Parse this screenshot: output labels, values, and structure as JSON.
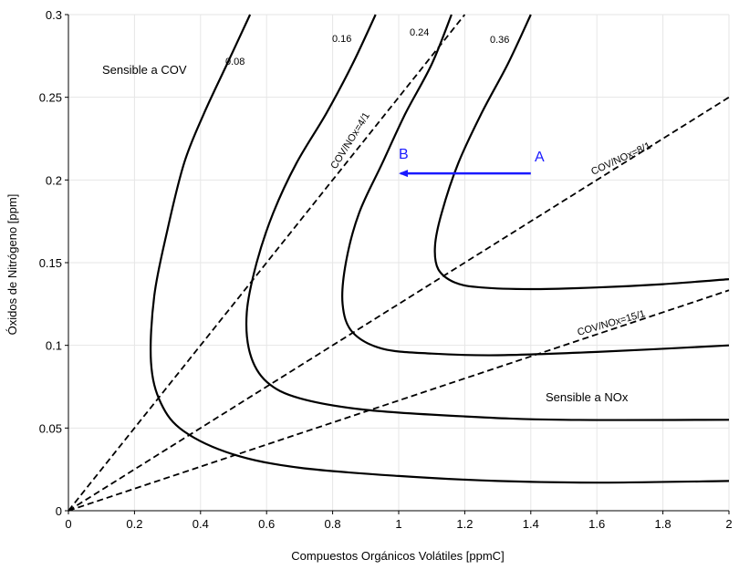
{
  "chart_data": {
    "type": "line",
    "xlabel": "Compuestos Orgánicos Volátiles [ppmC]",
    "ylabel": "Óxidos de Nitrógeno [ppm]",
    "xlim": [
      0,
      2
    ],
    "ylim": [
      0,
      0.3
    ],
    "xticks": [
      "0",
      "0.2",
      "0.4",
      "0.6",
      "0.8",
      "1",
      "1.2",
      "1.4",
      "1.6",
      "1.8",
      "2"
    ],
    "yticks": [
      "0",
      "0.05",
      "0.1",
      "0.15",
      "0.2",
      "0.25",
      "0.3"
    ],
    "grid": true,
    "isopleths": [
      {
        "label": "0.08",
        "points": [
          [
            0.55,
            0.3
          ],
          [
            0.48,
            0.27
          ],
          [
            0.41,
            0.24
          ],
          [
            0.35,
            0.21
          ],
          [
            0.3,
            0.17
          ],
          [
            0.26,
            0.13
          ],
          [
            0.25,
            0.09
          ],
          [
            0.28,
            0.065
          ],
          [
            0.35,
            0.048
          ],
          [
            0.5,
            0.034
          ],
          [
            0.7,
            0.026
          ],
          [
            1.0,
            0.021
          ],
          [
            1.3,
            0.018
          ],
          [
            1.6,
            0.017
          ],
          [
            2.0,
            0.018
          ]
        ]
      },
      {
        "label": "0.16",
        "points": [
          [
            0.93,
            0.3
          ],
          [
            0.86,
            0.27
          ],
          [
            0.78,
            0.24
          ],
          [
            0.69,
            0.21
          ],
          [
            0.62,
            0.18
          ],
          [
            0.57,
            0.15
          ],
          [
            0.54,
            0.12
          ],
          [
            0.55,
            0.095
          ],
          [
            0.6,
            0.078
          ],
          [
            0.7,
            0.068
          ],
          [
            0.9,
            0.061
          ],
          [
            1.2,
            0.057
          ],
          [
            1.5,
            0.055
          ],
          [
            2.0,
            0.055
          ]
        ]
      },
      {
        "label": "0.24",
        "points": [
          [
            1.16,
            0.3
          ],
          [
            1.1,
            0.27
          ],
          [
            1.02,
            0.24
          ],
          [
            0.95,
            0.21
          ],
          [
            0.88,
            0.18
          ],
          [
            0.84,
            0.15
          ],
          [
            0.83,
            0.125
          ],
          [
            0.86,
            0.108
          ],
          [
            0.95,
            0.098
          ],
          [
            1.1,
            0.095
          ],
          [
            1.3,
            0.094
          ],
          [
            1.6,
            0.096
          ],
          [
            2.0,
            0.1
          ]
        ]
      },
      {
        "label": "0.36",
        "points": [
          [
            1.4,
            0.3
          ],
          [
            1.33,
            0.27
          ],
          [
            1.25,
            0.24
          ],
          [
            1.18,
            0.21
          ],
          [
            1.13,
            0.18
          ],
          [
            1.11,
            0.16
          ],
          [
            1.12,
            0.146
          ],
          [
            1.17,
            0.138
          ],
          [
            1.25,
            0.135
          ],
          [
            1.4,
            0.134
          ],
          [
            1.6,
            0.135
          ],
          [
            1.8,
            0.137
          ],
          [
            2.0,
            0.14
          ]
        ]
      }
    ],
    "ratio_lines": [
      {
        "label": "COV/NOx=4/1",
        "x": [
          0,
          1.2
        ],
        "y": [
          0,
          0.3
        ]
      },
      {
        "label": "COV/NOx=8/1",
        "x": [
          0,
          2.0
        ],
        "y": [
          0,
          0.25
        ]
      },
      {
        "label": "COV/NOx=15/1",
        "x": [
          0,
          2.0
        ],
        "y": [
          0,
          0.1333
        ]
      }
    ],
    "annotations": {
      "region_cov": "Sensible a COV",
      "region_nox": "Sensible a NOx",
      "point_a": "A",
      "point_b": "B",
      "arrow": {
        "from": [
          1.4,
          0.204
        ],
        "to": [
          1.0,
          0.204
        ],
        "color": "#1a1aff"
      }
    }
  }
}
